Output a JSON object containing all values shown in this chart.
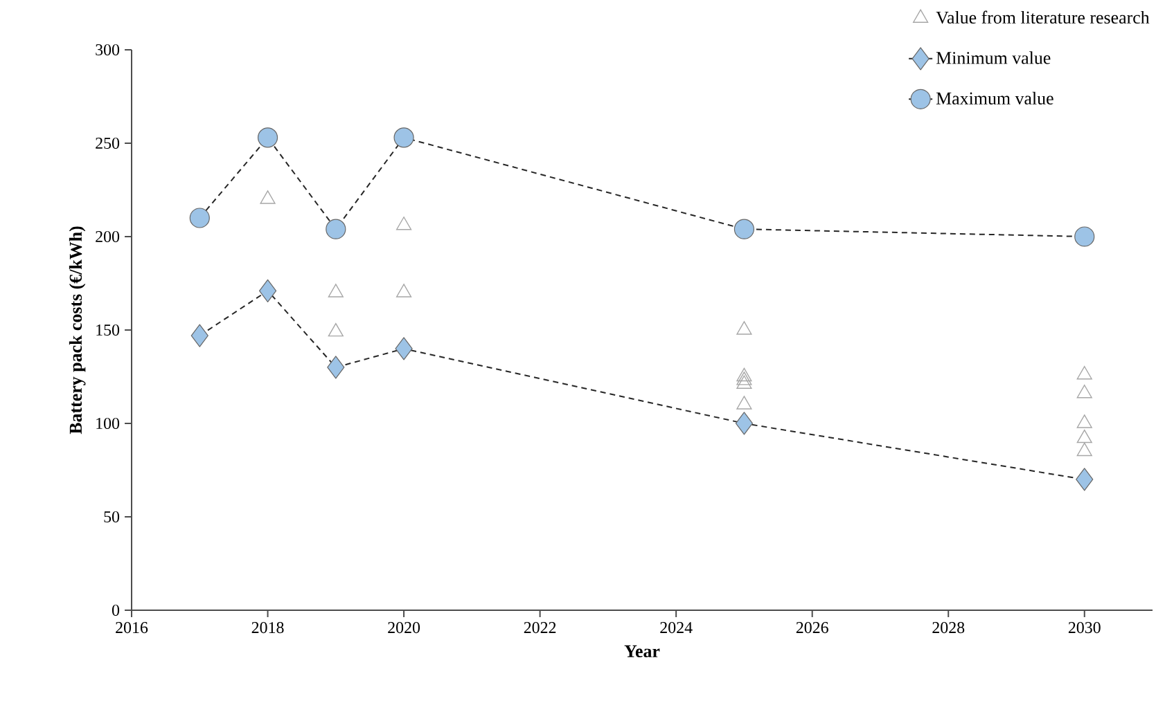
{
  "chart_data": {
    "type": "line",
    "xlabel": "Year",
    "ylabel": "Battery pack costs (€/kWh)",
    "xlim": [
      2016,
      2031
    ],
    "xticks": [
      2016,
      2018,
      2020,
      2022,
      2024,
      2026,
      2028,
      2030
    ],
    "ylim": [
      0,
      300
    ],
    "yticks": [
      0,
      50,
      100,
      150,
      200,
      250,
      300
    ],
    "grid": false,
    "legend": "top right",
    "series": [
      {
        "name": "Value from literature research",
        "type": "scatter",
        "marker": "triangle",
        "color": "#a6a6a6",
        "x": [
          2018,
          2019,
          2019,
          2020,
          2020,
          2025,
          2025,
          2025,
          2025,
          2025,
          2030,
          2030,
          2030,
          2030,
          2030
        ],
        "values": [
          220,
          170,
          149,
          206,
          170,
          150,
          125,
          123,
          121,
          110,
          126,
          116,
          100,
          92,
          85
        ]
      },
      {
        "name": "Minimum value",
        "marker": "diamond",
        "line_style": "dashed",
        "color": "#9dc3e6",
        "x": [
          2017,
          2018,
          2019,
          2020,
          2025,
          2030
        ],
        "values": [
          147,
          171,
          130,
          140,
          100,
          70
        ]
      },
      {
        "name": "Maximum value",
        "marker": "circle",
        "line_style": "dashed",
        "color": "#9dc3e6",
        "x": [
          2017,
          2018,
          2019,
          2020,
          2025,
          2030
        ],
        "values": [
          210,
          253,
          204,
          253,
          204,
          200
        ]
      }
    ]
  }
}
